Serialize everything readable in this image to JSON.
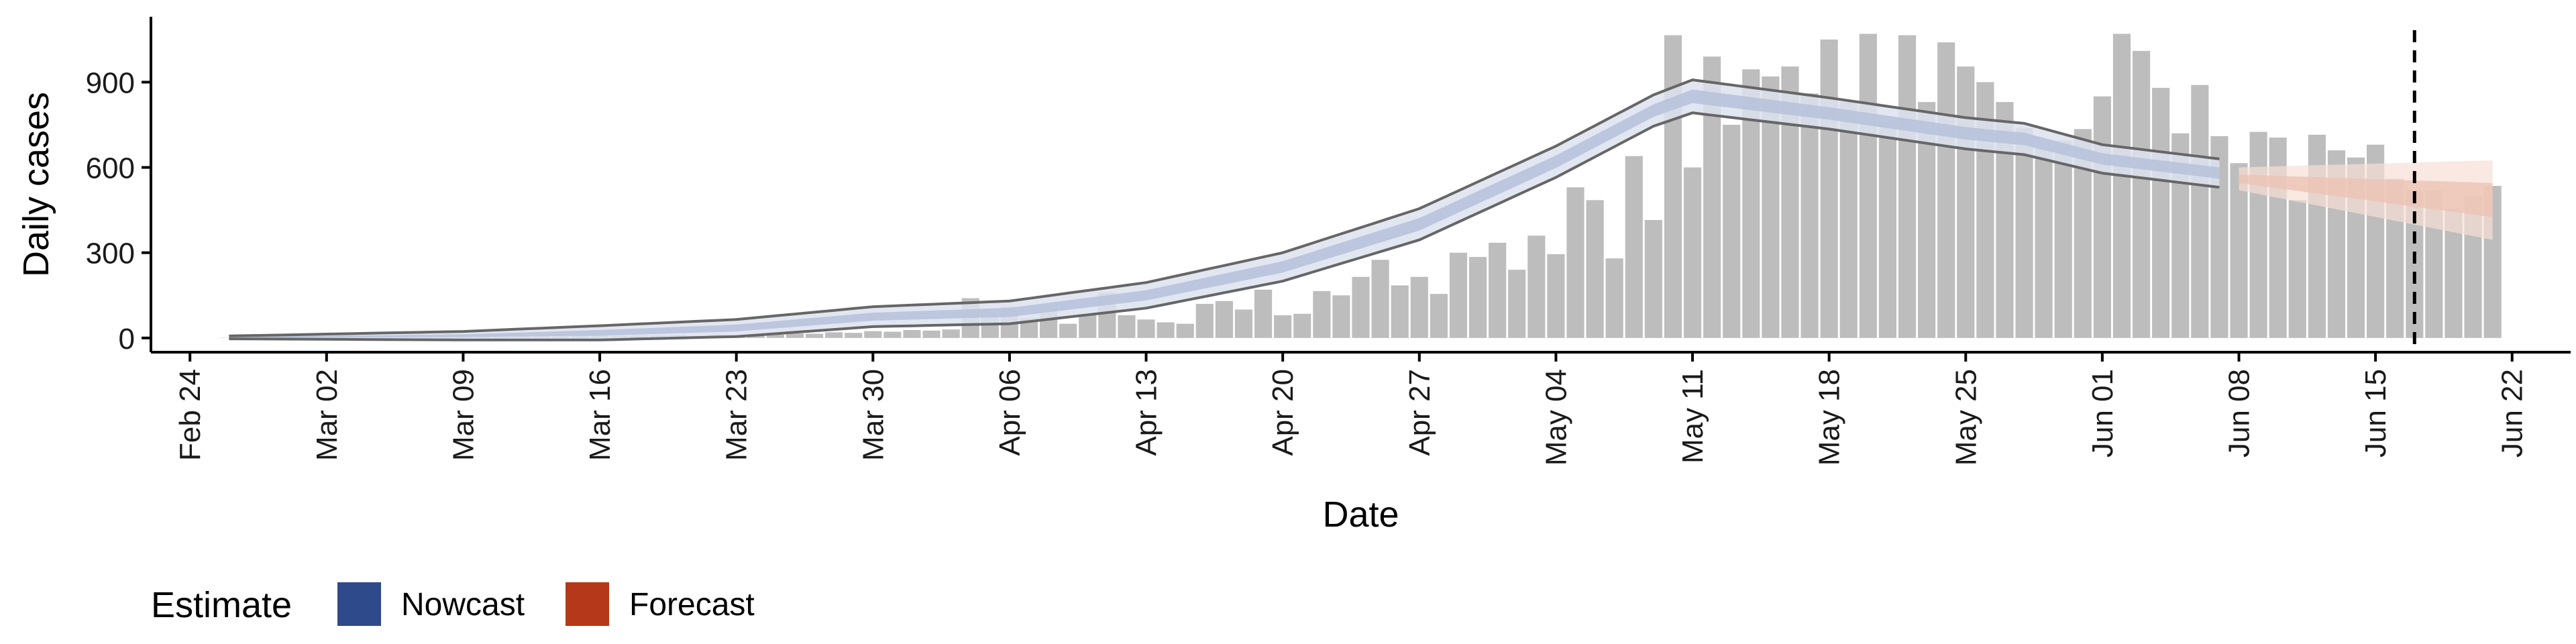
{
  "chart_data": {
    "type": "bar",
    "xlabel": "Date",
    "ylabel": "Daily cases",
    "ylim": [
      -50,
      1130
    ],
    "yticks": [
      0,
      300,
      600,
      900
    ],
    "x_start": "2020-02-22",
    "x_end": "2020-06-25",
    "xticks": [
      "Feb 24",
      "Mar 02",
      "Mar 09",
      "Mar 16",
      "Mar 23",
      "Mar 30",
      "Apr 06",
      "Apr 13",
      "Apr 20",
      "Apr 27",
      "May 04",
      "May 11",
      "May 18",
      "May 25",
      "Jun 01",
      "Jun 08",
      "Jun 15",
      "Jun 22"
    ],
    "xtick_dates": [
      "2020-02-24",
      "2020-03-02",
      "2020-03-09",
      "2020-03-16",
      "2020-03-23",
      "2020-03-30",
      "2020-04-06",
      "2020-04-13",
      "2020-04-20",
      "2020-04-27",
      "2020-05-04",
      "2020-05-11",
      "2020-05-18",
      "2020-05-25",
      "2020-06-01",
      "2020-06-08",
      "2020-06-15",
      "2020-06-22"
    ],
    "vline_date": "2020-06-17",
    "bars": {
      "start_date": "2020-02-26",
      "values": [
        1,
        0,
        1,
        2,
        1,
        2,
        3,
        2,
        3,
        4,
        3,
        5,
        4,
        6,
        5,
        7,
        6,
        8,
        7,
        9,
        8,
        10,
        9,
        11,
        8,
        12,
        10,
        14,
        12,
        16,
        15,
        20,
        18,
        24,
        22,
        28,
        26,
        30,
        140,
        75,
        110,
        70,
        115,
        50,
        85,
        160,
        80,
        65,
        55,
        50,
        120,
        130,
        100,
        170,
        80,
        85,
        165,
        150,
        215,
        275,
        185,
        215,
        155,
        300,
        285,
        335,
        240,
        360,
        295,
        530,
        485,
        280,
        640,
        415,
        1065,
        600,
        990,
        750,
        945,
        920,
        955,
        860,
        1050,
        830,
        1070,
        760,
        1065,
        830,
        1040,
        955,
        900,
        830,
        740,
        670,
        695,
        735,
        850,
        1070,
        1010,
        880,
        720,
        890,
        710,
        615,
        725,
        705,
        485,
        715,
        660,
        635,
        680,
        560,
        520,
        520,
        455,
        500,
        535
      ]
    },
    "nowcast": {
      "start_date": "2020-02-26",
      "end_date": "2020-06-07",
      "knots": [
        [
          "2020-02-26",
          2
        ],
        [
          "2020-03-09",
          8
        ],
        [
          "2020-03-16",
          18
        ],
        [
          "2020-03-23",
          35
        ],
        [
          "2020-03-30",
          75
        ],
        [
          "2020-04-06",
          90
        ],
        [
          "2020-04-13",
          150
        ],
        [
          "2020-04-20",
          250
        ],
        [
          "2020-04-27",
          400
        ],
        [
          "2020-05-04",
          620
        ],
        [
          "2020-05-09",
          800
        ],
        [
          "2020-05-11",
          850
        ],
        [
          "2020-05-18",
          790
        ],
        [
          "2020-05-25",
          720
        ],
        [
          "2020-05-28",
          700
        ],
        [
          "2020-06-01",
          630
        ],
        [
          "2020-06-07",
          580
        ]
      ],
      "band_outer": [
        [
          "2020-02-26",
          5
        ],
        [
          "2020-03-09",
          15
        ],
        [
          "2020-03-16",
          25
        ],
        [
          "2020-03-23",
          30
        ],
        [
          "2020-03-30",
          35
        ],
        [
          "2020-04-06",
          40
        ],
        [
          "2020-04-13",
          45
        ],
        [
          "2020-04-20",
          50
        ],
        [
          "2020-04-27",
          55
        ],
        [
          "2020-05-04",
          55
        ],
        [
          "2020-05-09",
          55
        ],
        [
          "2020-05-11",
          58
        ],
        [
          "2020-05-18",
          55
        ],
        [
          "2020-05-25",
          55
        ],
        [
          "2020-05-28",
          55
        ],
        [
          "2020-06-01",
          50
        ],
        [
          "2020-06-07",
          50
        ]
      ],
      "band_inner": [
        [
          "2020-02-26",
          2
        ],
        [
          "2020-03-09",
          5
        ],
        [
          "2020-03-16",
          10
        ],
        [
          "2020-03-23",
          12
        ],
        [
          "2020-03-30",
          14
        ],
        [
          "2020-04-06",
          16
        ],
        [
          "2020-04-13",
          18
        ],
        [
          "2020-04-20",
          20
        ],
        [
          "2020-04-27",
          22
        ],
        [
          "2020-05-04",
          22
        ],
        [
          "2020-05-09",
          22
        ],
        [
          "2020-05-11",
          24
        ],
        [
          "2020-05-18",
          22
        ],
        [
          "2020-05-25",
          22
        ],
        [
          "2020-05-28",
          22
        ],
        [
          "2020-06-01",
          20
        ],
        [
          "2020-06-07",
          20
        ]
      ]
    },
    "forecast": {
      "start_date": "2020-06-08",
      "end_date": "2020-06-21",
      "knots": [
        [
          "2020-06-08",
          560
        ],
        [
          "2020-06-21",
          485
        ]
      ],
      "band_outer": [
        [
          "2020-06-08",
          40
        ],
        [
          "2020-06-21",
          140
        ]
      ],
      "band_inner": [
        [
          "2020-06-08",
          15
        ],
        [
          "2020-06-21",
          60
        ]
      ]
    }
  },
  "legend": {
    "title": "Estimate",
    "items": [
      {
        "label": "Nowcast",
        "color": "#2f4a8a"
      },
      {
        "label": "Forecast",
        "color": "#b5381a"
      }
    ]
  },
  "colors": {
    "bar": "#bdbdbd",
    "nowcast_band_outer": "#dde2ee",
    "nowcast_band_inner": "#b9c4dc",
    "nowcast_outline": "#666666",
    "forecast_band_outer": "#f6dfd6",
    "forecast_band_inner": "#ecc3b4",
    "axis": "#000000",
    "vline": "#000000"
  }
}
